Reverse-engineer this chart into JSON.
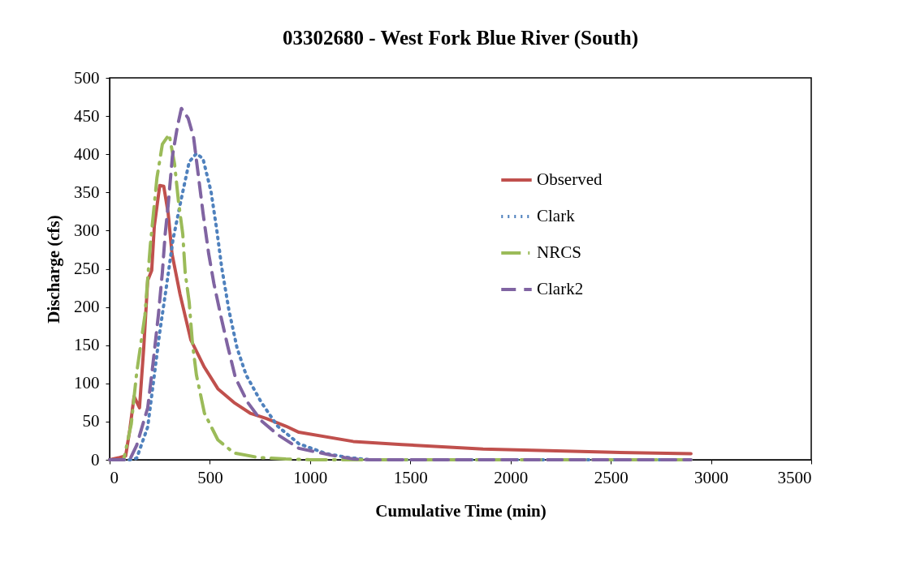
{
  "chart_data": {
    "type": "line",
    "title": "03302680 - West Fork Blue River (South)",
    "xlabel": "Cumulative Time (min)",
    "ylabel": "Discharge (cfs)",
    "xlim": [
      0,
      3500
    ],
    "xticks": [
      0,
      500,
      1000,
      1500,
      2000,
      2500,
      3000,
      3500
    ],
    "ylim": [
      0,
      500
    ],
    "yticks": [
      0,
      50,
      100,
      150,
      200,
      250,
      300,
      350,
      400,
      450,
      500
    ],
    "grid": false,
    "legend": "right",
    "series": [
      {
        "name": "Observed",
        "color": "#c0504d",
        "line_style": "solid",
        "x": [
          0,
          50,
          80,
          101,
          122,
          149,
          170,
          190,
          210,
          223,
          250,
          270,
          292,
          311,
          351,
          405,
          473,
          540,
          620,
          701,
          782,
          879,
          944,
          1215,
          1458,
          1863,
          2471,
          2900
        ],
        "values": [
          0,
          3,
          5,
          40,
          83,
          68,
          146,
          235,
          248,
          306,
          359,
          358,
          323,
          270,
          217,
          157,
          121,
          93,
          75,
          61,
          54,
          44,
          36,
          24,
          20,
          14,
          10,
          8
        ]
      },
      {
        "name": "Clark",
        "color": "#4f81bd",
        "line_style": "dotted",
        "x": [
          0,
          100,
          135,
          190,
          223,
          250,
          284,
          316,
          357,
          397,
          433,
          466,
          506,
          534,
          559,
          595,
          636,
          681,
          757,
          838,
          944,
          1081,
          1188,
          1300,
          2900
        ],
        "values": [
          0,
          0,
          2,
          43,
          111,
          167,
          228,
          288,
          341,
          390,
          401,
          394,
          351,
          302,
          252,
          196,
          146,
          111,
          75,
          44,
          21,
          8,
          3,
          0,
          0
        ]
      },
      {
        "name": "NRCS",
        "color": "#9bbb59",
        "line_style": "dashdot",
        "x": [
          0,
          70,
          108,
          135,
          176,
          203,
          236,
          263,
          297,
          324,
          344,
          365,
          377,
          397,
          413,
          433,
          473,
          540,
          620,
          742,
          879,
          1000,
          2900
        ],
        "values": [
          0,
          0,
          47,
          114,
          189,
          281,
          369,
          413,
          426,
          387,
          337,
          295,
          245,
          206,
          153,
          111,
          61,
          26,
          9,
          3,
          1,
          0,
          0
        ]
      },
      {
        "name": "Clark2",
        "color": "#8064a2",
        "line_style": "dashed",
        "x": [
          0,
          100,
          135,
          190,
          216,
          243,
          263,
          277,
          292,
          313,
          338,
          358,
          392,
          419,
          446,
          466,
          494,
          520,
          554,
          588,
          628,
          689,
          757,
          838,
          944,
          1106,
          1215,
          1300,
          2900
        ],
        "values": [
          0,
          0,
          19,
          68,
          125,
          189,
          245,
          295,
          333,
          397,
          436,
          460,
          447,
          422,
          365,
          323,
          270,
          231,
          189,
          150,
          107,
          75,
          51,
          33,
          15,
          6,
          1,
          0,
          0
        ]
      }
    ]
  }
}
